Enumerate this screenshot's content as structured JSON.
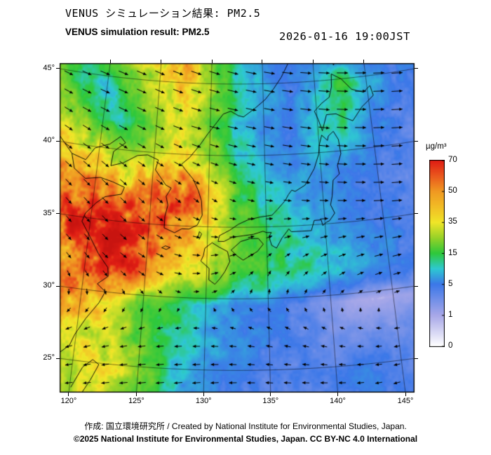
{
  "header": {
    "title_jp": "VENUS シミュレーション結果: PM2.5",
    "title_en": "VENUS simulation result: PM2.5",
    "timestamp": "2026-01-16 19:00JST"
  },
  "footer": {
    "credit": "作成: 国立環境研究所 / Created by National Institute for Environmental Studies, Japan.",
    "copyright": "©2025 National Institute for Environmental Studies, Japan. CC BY-NC 4.0 International"
  },
  "colorbar": {
    "unit": "µg/m³",
    "tick_labels": [
      "70",
      "50",
      "35",
      "15",
      "5",
      "1",
      "0"
    ],
    "breakpoints": [
      0,
      1,
      5,
      15,
      35,
      50,
      70
    ],
    "stops": [
      [
        0,
        "#ffffff"
      ],
      [
        1,
        "#a8a8e8"
      ],
      [
        5,
        "#3c78e8"
      ],
      [
        10,
        "#2ec8d2"
      ],
      [
        15,
        "#2ec83c"
      ],
      [
        25,
        "#96d228"
      ],
      [
        35,
        "#f0e628"
      ],
      [
        42,
        "#f2c026"
      ],
      [
        50,
        "#f09a22"
      ],
      [
        60,
        "#ea5a1e"
      ],
      [
        70,
        "#e01e14"
      ],
      [
        85,
        "#c81410"
      ]
    ]
  },
  "axes": {
    "lat_ticks": [
      {
        "value": 45,
        "label": "45°"
      },
      {
        "value": 40,
        "label": "40°"
      },
      {
        "value": 35,
        "label": "35°"
      },
      {
        "value": 30,
        "label": "30°"
      },
      {
        "value": 25,
        "label": "25°"
      }
    ],
    "lon_ticks": [
      {
        "value": 120,
        "label": "120°"
      },
      {
        "value": 125,
        "label": "125°"
      },
      {
        "value": 130,
        "label": "130°"
      },
      {
        "value": 135,
        "label": "135°"
      },
      {
        "value": 140,
        "label": "140°"
      },
      {
        "value": 145,
        "label": "145°"
      }
    ]
  },
  "chart_data": {
    "type": "heatmap",
    "title": "VENUS simulation result: PM2.5",
    "unit": "µg/m³",
    "region": {
      "lon_range": [
        115,
        150
      ],
      "lat_range": [
        22,
        47
      ]
    },
    "grid_lon": [
      115,
      117.5,
      120,
      122.5,
      125,
      127.5,
      130,
      132.5,
      135,
      137.5,
      140,
      142.5,
      145,
      147.5,
      150
    ],
    "grid_lat": [
      47,
      44.5,
      42,
      39.5,
      37,
      34.5,
      32,
      29.5,
      27,
      24.5,
      22
    ],
    "pm25": [
      [
        18,
        15,
        22,
        30,
        35,
        45,
        20,
        10,
        6,
        4,
        4,
        5,
        4,
        4,
        4
      ],
      [
        22,
        12,
        10,
        20,
        30,
        40,
        25,
        12,
        8,
        5,
        8,
        15,
        8,
        5,
        5
      ],
      [
        30,
        25,
        12,
        10,
        25,
        30,
        20,
        10,
        6,
        5,
        10,
        12,
        6,
        4,
        4
      ],
      [
        45,
        40,
        35,
        25,
        30,
        35,
        25,
        12,
        8,
        6,
        8,
        6,
        5,
        4,
        4
      ],
      [
        55,
        50,
        55,
        50,
        55,
        65,
        40,
        18,
        10,
        8,
        6,
        5,
        4,
        4,
        4
      ],
      [
        45,
        60,
        75,
        72,
        65,
        50,
        35,
        22,
        15,
        10,
        8,
        6,
        5,
        4,
        4
      ],
      [
        30,
        45,
        65,
        70,
        55,
        40,
        30,
        20,
        15,
        12,
        10,
        8,
        6,
        5,
        4
      ],
      [
        35,
        48,
        50,
        35,
        22,
        14,
        8,
        6,
        5,
        4,
        2,
        1,
        1,
        2,
        3
      ],
      [
        20,
        30,
        35,
        28,
        18,
        12,
        8,
        6,
        5,
        4,
        3,
        3,
        3,
        4,
        4
      ],
      [
        18,
        25,
        30,
        35,
        25,
        10,
        6,
        5,
        4,
        4,
        4,
        5,
        4,
        4,
        4
      ],
      [
        15,
        20,
        28,
        30,
        20,
        8,
        5,
        4,
        4,
        4,
        5,
        5,
        4,
        4,
        4
      ]
    ],
    "wind": {
      "lon": [
        115,
        120,
        125,
        130,
        135,
        140,
        145,
        150
      ],
      "lat": [
        47,
        42,
        37,
        32,
        27,
        22
      ],
      "u": [
        [
          8,
          9,
          9,
          10,
          10,
          10,
          10,
          10
        ],
        [
          7,
          8,
          8,
          9,
          9,
          10,
          10,
          10
        ],
        [
          5,
          6,
          5,
          3,
          5,
          7,
          9,
          10
        ],
        [
          3,
          4,
          6,
          6,
          2,
          4,
          7,
          8
        ],
        [
          -3,
          -4,
          -5,
          -5,
          -4,
          -3,
          -3,
          -2
        ],
        [
          -5,
          -6,
          -7,
          -7,
          -6,
          -6,
          -5,
          -4
        ]
      ],
      "v": [
        [
          -2,
          -2,
          -3,
          -3,
          -2,
          -1,
          -1,
          -1
        ],
        [
          -3,
          -3,
          -3,
          -2,
          -2,
          -2,
          -1,
          -1
        ],
        [
          -4,
          -5,
          -4,
          -2,
          -1,
          -1,
          -1,
          0
        ],
        [
          -3,
          -4,
          -3,
          1,
          3,
          2,
          1,
          0
        ],
        [
          -1,
          -2,
          -1,
          0,
          1,
          1,
          0,
          -1
        ],
        [
          0,
          -1,
          -1,
          -1,
          0,
          0,
          -1,
          -1
        ]
      ]
    },
    "coastlines": [
      [
        [
          116.0,
          40.6
        ],
        [
          117.6,
          39.3
        ],
        [
          118.9,
          39.0
        ],
        [
          119.6,
          39.9
        ],
        [
          120.9,
          40.3
        ],
        [
          121.8,
          40.9
        ],
        [
          122.3,
          40.5
        ],
        [
          121.3,
          39.8
        ],
        [
          121.2,
          38.8
        ],
        [
          122.3,
          39.1
        ],
        [
          123.5,
          39.7
        ],
        [
          124.4,
          39.8
        ]
      ],
      [
        [
          117.6,
          39.3
        ],
        [
          118.0,
          38.3
        ],
        [
          119.1,
          37.7
        ],
        [
          120.4,
          37.9
        ],
        [
          121.5,
          37.7
        ],
        [
          122.6,
          37.4
        ],
        [
          122.4,
          36.9
        ],
        [
          121.0,
          36.6
        ],
        [
          120.3,
          36.1
        ],
        [
          119.5,
          35.3
        ],
        [
          119.3,
          34.7
        ],
        [
          120.3,
          33.5
        ],
        [
          121.0,
          32.6
        ],
        [
          121.9,
          31.7
        ],
        [
          122.0,
          31.1
        ],
        [
          121.2,
          30.5
        ],
        [
          121.9,
          30.0
        ],
        [
          121.5,
          29.2
        ],
        [
          120.6,
          28.0
        ],
        [
          119.9,
          26.8
        ],
        [
          119.6,
          26.0
        ],
        [
          118.8,
          25.3
        ],
        [
          118.0,
          24.5
        ],
        [
          117.0,
          23.8
        ],
        [
          116.2,
          23.2
        ]
      ],
      [
        [
          124.4,
          39.8
        ],
        [
          125.4,
          39.5
        ],
        [
          125.2,
          38.8
        ],
        [
          126.2,
          37.8
        ],
        [
          126.7,
          37.6
        ],
        [
          126.3,
          37.0
        ],
        [
          126.5,
          36.4
        ],
        [
          126.3,
          35.6
        ],
        [
          126.3,
          34.8
        ],
        [
          127.2,
          34.5
        ],
        [
          127.8,
          34.8
        ],
        [
          128.4,
          34.8
        ],
        [
          129.1,
          35.1
        ],
        [
          129.5,
          35.8
        ],
        [
          129.4,
          36.8
        ],
        [
          129.1,
          37.5
        ],
        [
          128.6,
          38.3
        ],
        [
          127.8,
          39.0
        ],
        [
          127.5,
          39.3
        ],
        [
          128.2,
          39.8
        ],
        [
          129.1,
          40.7
        ],
        [
          129.8,
          41.5
        ],
        [
          130.6,
          42.3
        ]
      ],
      [
        [
          130.6,
          42.3
        ],
        [
          131.2,
          42.9
        ],
        [
          131.9,
          43.1
        ],
        [
          132.6,
          42.8
        ],
        [
          133.1,
          42.7
        ],
        [
          134.2,
          43.3
        ],
        [
          135.2,
          43.9
        ],
        [
          136.0,
          44.6
        ],
        [
          136.8,
          45.4
        ],
        [
          137.5,
          46.3
        ],
        [
          137.8,
          46.6
        ]
      ],
      [
        [
          130.9,
          34.0
        ],
        [
          131.4,
          34.0
        ],
        [
          132.1,
          34.3
        ],
        [
          133.0,
          34.4
        ],
        [
          133.9,
          34.5
        ],
        [
          134.7,
          34.7
        ],
        [
          135.0,
          34.6
        ],
        [
          135.4,
          34.6
        ],
        [
          135.2,
          34.3
        ],
        [
          135.4,
          33.7
        ],
        [
          135.8,
          33.5
        ],
        [
          136.3,
          34.2
        ],
        [
          136.9,
          34.8
        ],
        [
          137.1,
          34.6
        ],
        [
          138.0,
          34.6
        ],
        [
          138.8,
          34.6
        ],
        [
          139.1,
          35.3
        ],
        [
          139.7,
          35.3
        ],
        [
          139.8,
          34.9
        ],
        [
          140.1,
          35.1
        ],
        [
          140.4,
          35.2
        ],
        [
          140.9,
          35.7
        ],
        [
          140.6,
          36.3
        ],
        [
          140.8,
          36.9
        ],
        [
          141.0,
          38.0
        ],
        [
          141.6,
          38.4
        ],
        [
          141.5,
          39.0
        ],
        [
          141.9,
          39.8
        ],
        [
          141.8,
          40.8
        ],
        [
          141.4,
          41.4
        ],
        [
          140.9,
          41.1
        ],
        [
          140.8,
          40.8
        ],
        [
          140.3,
          41.2
        ],
        [
          140.0,
          40.5
        ],
        [
          139.9,
          39.9
        ],
        [
          139.4,
          38.9
        ],
        [
          138.5,
          37.8
        ],
        [
          137.6,
          37.4
        ],
        [
          137.3,
          37.5
        ],
        [
          137.0,
          37.2
        ],
        [
          136.7,
          36.8
        ],
        [
          136.0,
          36.2
        ],
        [
          135.5,
          35.8
        ],
        [
          134.5,
          35.7
        ],
        [
          133.4,
          35.5
        ],
        [
          132.6,
          35.2
        ],
        [
          131.9,
          34.8
        ],
        [
          131.0,
          34.4
        ],
        [
          130.9,
          34.0
        ]
      ],
      [
        [
          130.4,
          33.9
        ],
        [
          129.8,
          33.5
        ],
        [
          129.7,
          33.0
        ],
        [
          129.5,
          32.6
        ],
        [
          130.2,
          32.1
        ],
        [
          130.2,
          31.3
        ],
        [
          130.7,
          31.0
        ],
        [
          131.1,
          31.4
        ],
        [
          131.5,
          31.9
        ],
        [
          131.9,
          32.6
        ],
        [
          131.7,
          33.3
        ],
        [
          131.0,
          33.6
        ],
        [
          130.4,
          33.9
        ]
      ],
      [
        [
          132.0,
          33.4
        ],
        [
          132.5,
          33.0
        ],
        [
          133.0,
          32.7
        ],
        [
          134.2,
          33.3
        ],
        [
          134.7,
          33.8
        ],
        [
          134.3,
          34.2
        ],
        [
          133.6,
          34.2
        ],
        [
          132.8,
          34.0
        ],
        [
          132.0,
          33.4
        ]
      ],
      [
        [
          140.4,
          41.5
        ],
        [
          140.1,
          42.3
        ],
        [
          139.8,
          42.9
        ],
        [
          140.5,
          43.4
        ],
        [
          141.3,
          43.8
        ],
        [
          141.6,
          44.5
        ],
        [
          141.7,
          45.4
        ],
        [
          142.6,
          45.0
        ],
        [
          143.5,
          44.2
        ],
        [
          144.6,
          43.9
        ],
        [
          145.3,
          44.3
        ],
        [
          145.5,
          43.6
        ],
        [
          145.0,
          43.3
        ],
        [
          144.3,
          42.9
        ],
        [
          143.3,
          42.0
        ],
        [
          142.5,
          42.3
        ],
        [
          141.8,
          42.6
        ],
        [
          140.9,
          42.6
        ],
        [
          140.4,
          41.5
        ]
      ],
      [
        [
          141.7,
          46.7
        ],
        [
          142.0,
          46.0
        ],
        [
          142.3,
          46.4
        ],
        [
          142.5,
          46.7
        ]
      ],
      [
        [
          126.2,
          33.4
        ],
        [
          126.6,
          33.3
        ],
        [
          126.9,
          33.45
        ],
        [
          126.5,
          33.55
        ],
        [
          126.2,
          33.4
        ]
      ],
      [
        [
          129.3,
          34.1
        ],
        [
          129.5,
          34.5
        ],
        [
          129.3,
          34.65
        ],
        [
          129.2,
          34.2
        ]
      ],
      [
        [
          120.1,
          23.1
        ],
        [
          120.8,
          24.6
        ],
        [
          121.5,
          25.2
        ],
        [
          122.0,
          24.9
        ],
        [
          121.5,
          23.8
        ],
        [
          120.9,
          22.7
        ]
      ]
    ]
  }
}
